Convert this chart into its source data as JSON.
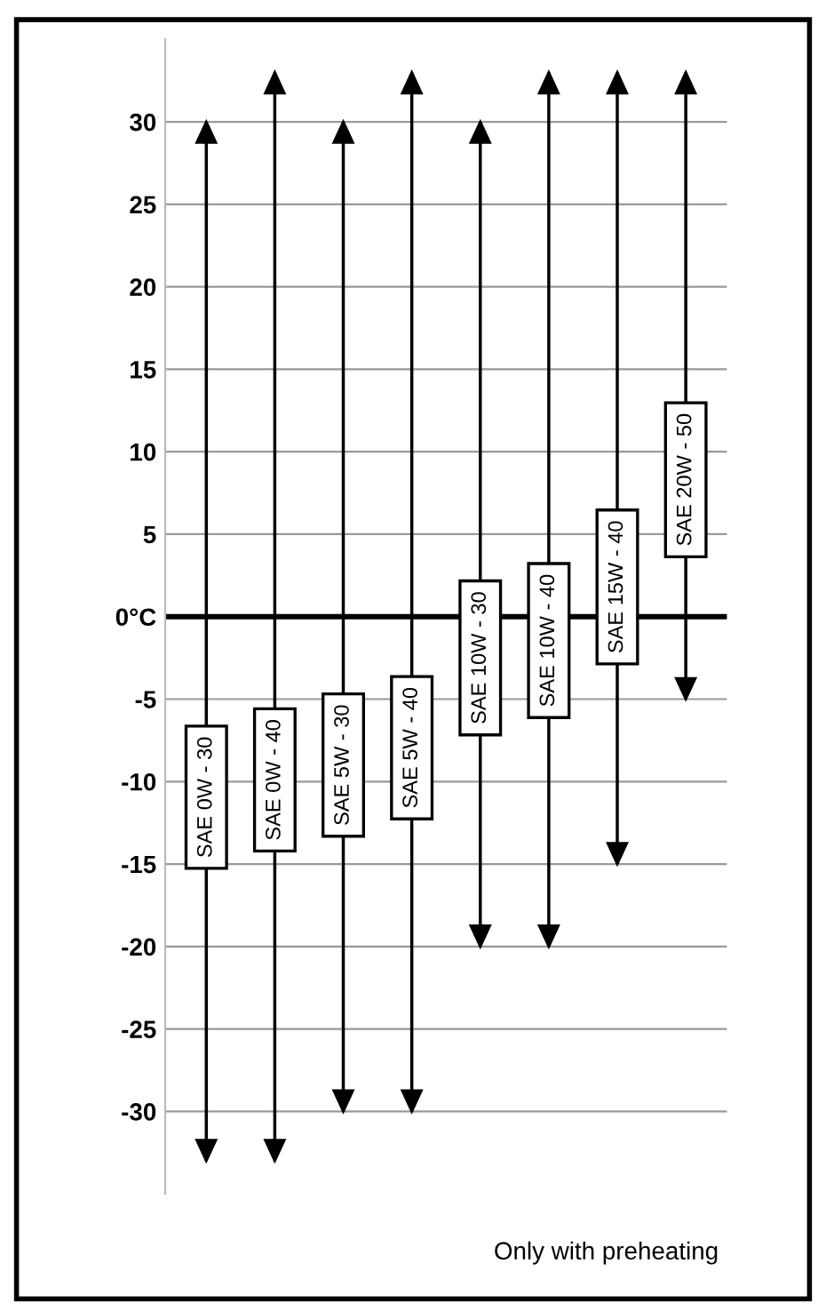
{
  "chart_data": {
    "type": "bar",
    "categories": [
      "SAE 0W - 30",
      "SAE 0W - 40",
      "SAE 5W - 30",
      "SAE 5W - 40",
      "SAE 10W - 30",
      "SAE 10W - 40",
      "SAE 15W - 40",
      "SAE 20W - 50"
    ],
    "base": [
      -33,
      -33,
      -30,
      -30,
      -20,
      -20,
      -15,
      -5
    ],
    "values": [
      63,
      66,
      60,
      63,
      50,
      53,
      48,
      38
    ],
    "color": "#000000",
    "ylim": [
      -35,
      35
    ],
    "yticks": [
      -30,
      -25,
      -20,
      -15,
      -10,
      -5,
      {
        "value": 0,
        "label": "0°C"
      },
      5,
      10,
      15,
      20,
      25,
      30
    ],
    "grid": "y",
    "ref_lines": [
      {
        "axis": "y",
        "value": 0,
        "color": "#000000"
      }
    ],
    "annotations": [
      "Only with preheating"
    ]
  }
}
